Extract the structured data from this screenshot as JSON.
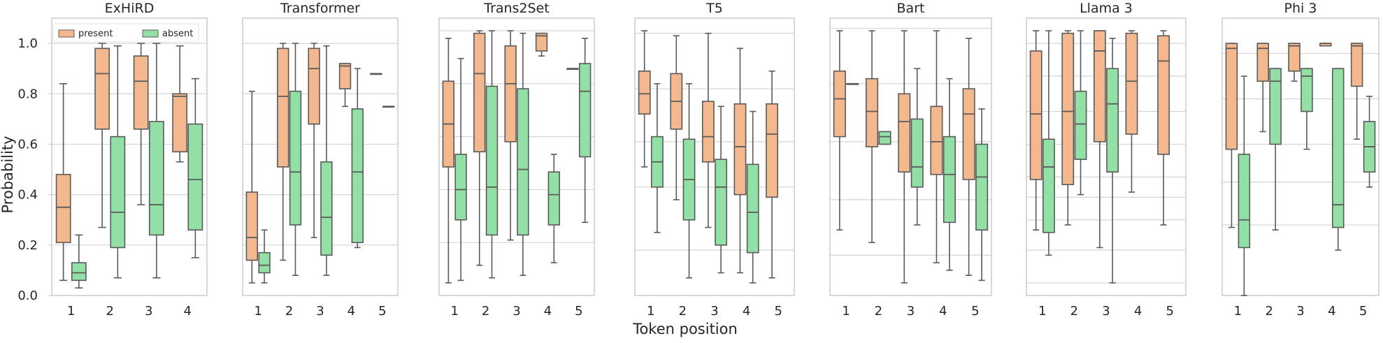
{
  "figure": {
    "ylabel": "Probability",
    "xlabel": "Token position"
  },
  "legend": [
    {
      "name": "present",
      "color": "#f4b88e"
    },
    {
      "name": "absent",
      "color": "#92e0a5"
    }
  ],
  "colors": {
    "present": "#f4b88e",
    "absent": "#92e0a5",
    "edge": "#5a5a5a",
    "grid": "#d4d4d4",
    "frame": "#c8c8c8"
  },
  "chart_data": [
    {
      "type": "box",
      "title": "ExHiRD",
      "ylim": [
        0,
        1.1
      ],
      "yticks": [
        "0.0",
        "0.2",
        "0.4",
        "0.6",
        "0.8",
        "1.0"
      ],
      "grid_lines": [
        0.2,
        0.4,
        0.6,
        0.8,
        1.0
      ],
      "categories": [
        "1",
        "2",
        "3",
        "4"
      ],
      "series": [
        {
          "name": "present",
          "boxes": [
            {
              "whislo": 0.06,
              "q1": 0.21,
              "med": 0.35,
              "q3": 0.48,
              "whishi": 0.84
            },
            {
              "whislo": 0.27,
              "q1": 0.66,
              "med": 0.88,
              "q3": 0.98,
              "whishi": 1.0
            },
            {
              "whislo": 0.36,
              "q1": 0.66,
              "med": 0.85,
              "q3": 0.95,
              "whishi": 1.0
            },
            {
              "whislo": 0.53,
              "q1": 0.57,
              "med": 0.79,
              "q3": 0.8,
              "whishi": 0.99
            }
          ]
        },
        {
          "name": "absent",
          "boxes": [
            {
              "whislo": 0.03,
              "q1": 0.06,
              "med": 0.09,
              "q3": 0.13,
              "whishi": 0.24
            },
            {
              "whislo": 0.07,
              "q1": 0.19,
              "med": 0.33,
              "q3": 0.63,
              "whishi": 0.99
            },
            {
              "whislo": 0.07,
              "q1": 0.24,
              "med": 0.36,
              "q3": 0.69,
              "whishi": 1.0
            },
            {
              "whislo": 0.15,
              "q1": 0.26,
              "med": 0.46,
              "q3": 0.68,
              "whishi": 0.86
            }
          ]
        }
      ]
    },
    {
      "type": "box",
      "title": "Transformer",
      "ylim": [
        0,
        1.1
      ],
      "grid_lines": [
        0.2,
        0.4,
        0.6,
        0.8,
        1.0
      ],
      "categories": [
        "1",
        "2",
        "3",
        "4",
        "5"
      ],
      "series": [
        {
          "name": "present",
          "boxes": [
            {
              "whislo": 0.05,
              "q1": 0.14,
              "med": 0.23,
              "q3": 0.41,
              "whishi": 0.81
            },
            {
              "whislo": 0.14,
              "q1": 0.51,
              "med": 0.79,
              "q3": 0.98,
              "whishi": 1.0
            },
            {
              "whislo": 0.23,
              "q1": 0.68,
              "med": 0.9,
              "q3": 0.98,
              "whishi": 1.0
            },
            {
              "whislo": 0.75,
              "q1": 0.82,
              "med": 0.91,
              "q3": 0.92,
              "whishi": 0.92
            },
            {
              "whislo": 0.88,
              "q1": 0.88,
              "med": 0.88,
              "q3": 0.88,
              "whishi": 0.88
            }
          ]
        },
        {
          "name": "absent",
          "boxes": [
            {
              "whislo": 0.05,
              "q1": 0.09,
              "med": 0.12,
              "q3": 0.17,
              "whishi": 0.26
            },
            {
              "whislo": 0.08,
              "q1": 0.28,
              "med": 0.49,
              "q3": 0.81,
              "whishi": 1.0
            },
            {
              "whislo": 0.08,
              "q1": 0.16,
              "med": 0.31,
              "q3": 0.53,
              "whishi": 0.99
            },
            {
              "whislo": 0.19,
              "q1": 0.21,
              "med": 0.49,
              "q3": 0.74,
              "whishi": 0.9
            },
            {
              "whislo": 0.75,
              "q1": 0.75,
              "med": 0.75,
              "q3": 0.75,
              "whishi": 0.75
            }
          ]
        }
      ]
    },
    {
      "type": "box",
      "title": "Trans2Set",
      "ylim": [
        0,
        1.1
      ],
      "grid_lines": [
        0.21,
        0.42,
        0.63,
        0.84,
        1.05
      ],
      "categories": [
        "1",
        "2",
        "3",
        "4",
        "5"
      ],
      "series": [
        {
          "name": "present",
          "boxes": [
            {
              "whislo": 0.05,
              "q1": 0.51,
              "med": 0.68,
              "q3": 0.85,
              "whishi": 1.02
            },
            {
              "whislo": 0.12,
              "q1": 0.57,
              "med": 0.88,
              "q3": 1.04,
              "whishi": 1.05
            },
            {
              "whislo": 0.22,
              "q1": 0.61,
              "med": 0.84,
              "q3": 0.99,
              "whishi": 1.05
            },
            {
              "whislo": 0.95,
              "q1": 0.97,
              "med": 1.03,
              "q3": 1.04,
              "whishi": 1.04
            },
            {
              "whislo": 0.9,
              "q1": 0.9,
              "med": 0.9,
              "q3": 0.9,
              "whishi": 0.9
            }
          ]
        },
        {
          "name": "absent",
          "boxes": [
            {
              "whislo": 0.06,
              "q1": 0.3,
              "med": 0.42,
              "q3": 0.56,
              "whishi": 0.94
            },
            {
              "whislo": 0.07,
              "q1": 0.24,
              "med": 0.43,
              "q3": 0.83,
              "whishi": 1.05
            },
            {
              "whislo": 0.08,
              "q1": 0.24,
              "med": 0.5,
              "q3": 0.82,
              "whishi": 1.04
            },
            {
              "whislo": 0.13,
              "q1": 0.28,
              "med": 0.4,
              "q3": 0.49,
              "whishi": 0.56
            },
            {
              "whislo": 0.29,
              "q1": 0.55,
              "med": 0.81,
              "q3": 0.92,
              "whishi": 1.02
            }
          ]
        }
      ]
    },
    {
      "type": "box",
      "title": "T5",
      "ylim": [
        0,
        1.1
      ],
      "grid_lines": [
        0.18,
        0.43,
        0.61,
        0.82,
        1.04
      ],
      "categories": [
        "1",
        "2",
        "3",
        "4",
        "5"
      ],
      "series": [
        {
          "name": "present",
          "boxes": [
            {
              "whislo": 0.51,
              "q1": 0.72,
              "med": 0.8,
              "q3": 0.89,
              "whishi": 1.05
            },
            {
              "whislo": 0.38,
              "q1": 0.66,
              "med": 0.77,
              "q3": 0.88,
              "whishi": 1.03
            },
            {
              "whislo": 0.27,
              "q1": 0.53,
              "med": 0.63,
              "q3": 0.77,
              "whishi": 1.04
            },
            {
              "whislo": 0.09,
              "q1": 0.4,
              "med": 0.59,
              "q3": 0.76,
              "whishi": 0.98
            },
            {
              "whislo": 0.07,
              "q1": 0.39,
              "med": 0.64,
              "q3": 0.76,
              "whishi": 0.89
            }
          ]
        },
        {
          "name": "absent",
          "boxes": [
            {
              "whislo": 0.25,
              "q1": 0.43,
              "med": 0.53,
              "q3": 0.63,
              "whishi": 0.84
            },
            {
              "whislo": 0.07,
              "q1": 0.3,
              "med": 0.46,
              "q3": 0.62,
              "whishi": 0.84
            },
            {
              "whislo": 0.09,
              "q1": 0.2,
              "med": 0.43,
              "q3": 0.54,
              "whishi": 0.75
            },
            {
              "whislo": 0.05,
              "q1": 0.17,
              "med": 0.33,
              "q3": 0.52,
              "whishi": 0.73
            }
          ]
        }
      ]
    },
    {
      "type": "box",
      "title": "Bart",
      "ylim": [
        0,
        1.1
      ],
      "grid_lines": [
        0.16,
        0.38,
        0.61,
        0.84,
        1.06
      ],
      "categories": [
        "1",
        "2",
        "3",
        "4",
        "5"
      ],
      "series": [
        {
          "name": "present",
          "boxes": [
            {
              "whislo": 0.26,
              "q1": 0.63,
              "med": 0.78,
              "q3": 0.89,
              "whishi": 1.05
            },
            {
              "whislo": 0.21,
              "q1": 0.59,
              "med": 0.73,
              "q3": 0.86,
              "whishi": 1.05
            },
            {
              "whislo": 0.05,
              "q1": 0.49,
              "med": 0.69,
              "q3": 0.8,
              "whishi": 1.05
            },
            {
              "whislo": 0.13,
              "q1": 0.48,
              "med": 0.61,
              "q3": 0.75,
              "whishi": 1.05
            },
            {
              "whislo": 0.08,
              "q1": 0.46,
              "med": 0.72,
              "q3": 0.82,
              "whishi": 1.02
            }
          ]
        },
        {
          "name": "absent",
          "boxes": [
            {
              "whislo": 0.84,
              "q1": 0.84,
              "med": 0.84,
              "q3": 0.84,
              "whishi": 0.84
            },
            {
              "whislo": 0.6,
              "q1": 0.6,
              "med": 0.63,
              "q3": 0.65,
              "whishi": 0.65
            },
            {
              "whislo": 0.28,
              "q1": 0.43,
              "med": 0.51,
              "q3": 0.7,
              "whishi": 0.9
            },
            {
              "whislo": 0.1,
              "q1": 0.29,
              "med": 0.48,
              "q3": 0.63,
              "whishi": 0.86
            },
            {
              "whislo": 0.06,
              "q1": 0.26,
              "med": 0.47,
              "q3": 0.6,
              "whishi": 0.74
            }
          ]
        }
      ]
    },
    {
      "type": "box",
      "title": "Llama 3",
      "ylim": [
        0,
        1.1
      ],
      "grid_lines": [
        0.05,
        0.18,
        0.3,
        0.39,
        0.47,
        0.6,
        0.73,
        0.87,
        1.0
      ],
      "categories": [
        "1",
        "2",
        "3",
        "4",
        "5"
      ],
      "series": [
        {
          "name": "present",
          "boxes": [
            {
              "whislo": 0.26,
              "q1": 0.46,
              "med": 0.72,
              "q3": 0.97,
              "whishi": 1.05
            },
            {
              "whislo": 0.28,
              "q1": 0.44,
              "med": 0.73,
              "q3": 1.04,
              "whishi": 1.05
            },
            {
              "whislo": 0.19,
              "q1": 0.61,
              "med": 0.97,
              "q3": 1.05,
              "whishi": 1.05
            },
            {
              "whislo": 0.41,
              "q1": 0.64,
              "med": 0.85,
              "q3": 1.04,
              "whishi": 1.05
            },
            {
              "whislo": 0.28,
              "q1": 0.56,
              "med": 0.93,
              "q3": 1.03,
              "whishi": 1.05
            }
          ]
        },
        {
          "name": "absent",
          "boxes": [
            {
              "whislo": 0.16,
              "q1": 0.25,
              "med": 0.51,
              "q3": 0.62,
              "whishi": 1.05
            },
            {
              "whislo": 0.4,
              "q1": 0.54,
              "med": 0.68,
              "q3": 0.81,
              "whishi": 1.05
            },
            {
              "whislo": 0.05,
              "q1": 0.49,
              "med": 0.76,
              "q3": 0.9,
              "whishi": 1.02
            }
          ]
        }
      ]
    },
    {
      "type": "box",
      "title": "Phi 3",
      "ylim": [
        0,
        1.1
      ],
      "grid_lines": [
        0.28,
        0.45,
        0.6,
        0.78,
        0.96
      ],
      "categories": [
        "1",
        "2",
        "3",
        "4",
        "5"
      ],
      "series": [
        {
          "name": "present",
          "boxes": [
            {
              "whislo": 0.27,
              "q1": 0.58,
              "med": 0.98,
              "q3": 1.0,
              "whishi": 1.0
            },
            {
              "whislo": 0.65,
              "q1": 0.85,
              "med": 0.98,
              "q3": 1.0,
              "whishi": 1.0
            },
            {
              "whislo": 0.85,
              "q1": 0.89,
              "med": 0.99,
              "q3": 1.0,
              "whishi": 1.0
            },
            {
              "whislo": 0.99,
              "q1": 0.99,
              "med": 1.0,
              "q3": 1.0,
              "whishi": 1.0
            },
            {
              "whislo": 0.62,
              "q1": 0.83,
              "med": 0.99,
              "q3": 1.0,
              "whishi": 1.0
            }
          ]
        },
        {
          "name": "absent",
          "boxes": [
            {
              "whislo": 0.0,
              "q1": 0.19,
              "med": 0.3,
              "q3": 0.56,
              "whishi": 0.87
            },
            {
              "whislo": 0.26,
              "q1": 0.6,
              "med": 0.85,
              "q3": 0.9,
              "whishi": 0.9
            },
            {
              "whislo": 0.58,
              "q1": 0.73,
              "med": 0.87,
              "q3": 0.9,
              "whishi": 0.9
            },
            {
              "whislo": 0.18,
              "q1": 0.27,
              "med": 0.36,
              "q3": 0.9,
              "whishi": 0.9
            },
            {
              "whislo": 0.43,
              "q1": 0.49,
              "med": 0.59,
              "q3": 0.69,
              "whishi": 0.79
            }
          ]
        }
      ]
    }
  ]
}
